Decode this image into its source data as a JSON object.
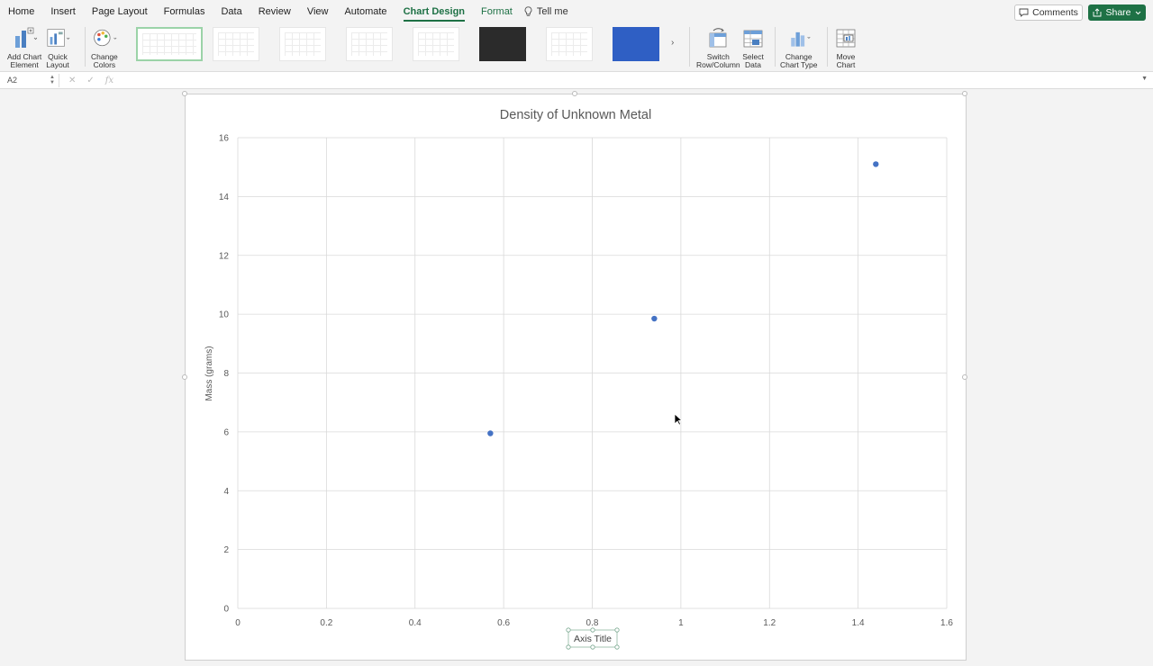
{
  "menu": {
    "tabs": [
      "Home",
      "Insert",
      "Page Layout",
      "Formulas",
      "Data",
      "Review",
      "View",
      "Automate",
      "Chart Design",
      "Format"
    ],
    "active_tab": "Chart Design",
    "tell_me": "Tell me",
    "comments_label": "Comments",
    "share_label": "Share"
  },
  "ribbon": {
    "add_chart_element": [
      "Add Chart",
      "Element"
    ],
    "quick_layout": [
      "Quick",
      "Layout"
    ],
    "change_colors": [
      "Change",
      "Colors"
    ],
    "switch_row_column": [
      "Switch",
      "Row/Column"
    ],
    "select_data": [
      "Select",
      "Data"
    ],
    "change_chart_type": [
      "Change",
      "Chart Type"
    ],
    "move_chart": [
      "Move",
      "Chart"
    ],
    "gallery_more": "›"
  },
  "formula_bar": {
    "name_box": "A2",
    "cancel_symbol": "✕",
    "enter_symbol": "✓",
    "fx_symbol": "fx"
  },
  "chart_data": {
    "type": "scatter",
    "title": "Density of Unknown Metal",
    "xlabel": "Axis Title",
    "ylabel": "Mass (grams)",
    "xlim": [
      0,
      1.6
    ],
    "ylim": [
      0,
      16
    ],
    "xticks": [
      0,
      0.2,
      0.4,
      0.6,
      0.8,
      1,
      1.2,
      1.4,
      1.6
    ],
    "yticks": [
      0,
      2,
      4,
      6,
      8,
      10,
      12,
      14,
      16
    ],
    "grid": true,
    "series": [
      {
        "x": [
          0.57,
          0.94,
          1.44
        ],
        "y": [
          5.95,
          9.85,
          15.1
        ],
        "color": "#4472c4"
      }
    ]
  }
}
